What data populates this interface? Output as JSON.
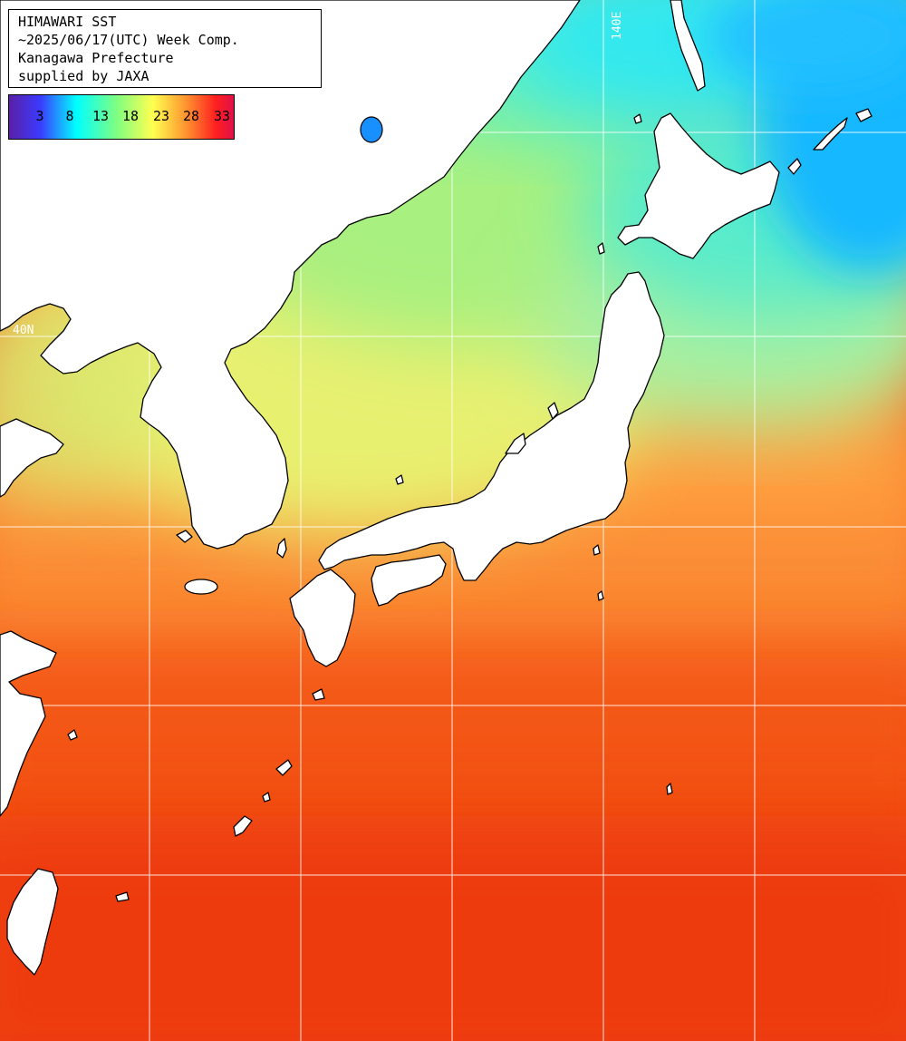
{
  "map": {
    "region": "Japan and surrounding seas",
    "grid_labels": {
      "lon_140": "140E",
      "lat_40": "40N"
    }
  },
  "info_box": {
    "lines": [
      "HIMAWARI SST",
      "~2025/06/17(UTC) Week Comp.",
      "Kanagawa Prefecture",
      "supplied by JAXA"
    ]
  },
  "legend": {
    "ticks": [
      "3",
      "8",
      "13",
      "18",
      "23",
      "28",
      "33"
    ],
    "gradient_colors": [
      "#5a1fa6",
      "#3b3bff",
      "#00ffff",
      "#80ff80",
      "#ffff50",
      "#ff9a30",
      "#ff2020",
      "#e0104a"
    ]
  },
  "colors": {
    "land": "#ffffff",
    "coast": "#000000",
    "grid": "#ffffff",
    "cold": "#16a8ff",
    "cool": "#4ee8ec",
    "mild": "#8cf490",
    "warm": "#ffc060",
    "hot": "#ff5010"
  }
}
